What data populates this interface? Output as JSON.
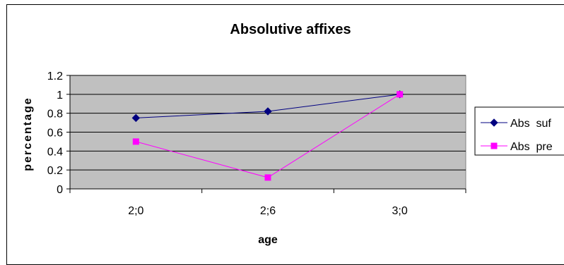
{
  "chart_data": {
    "type": "line",
    "title": "Absolutive affixes",
    "xlabel": "age",
    "ylabel": "percentage",
    "categories": [
      "2;0",
      "2;6",
      "3;0"
    ],
    "ylim": [
      0,
      1.2
    ],
    "yticks": [
      "0",
      "0.2",
      "0.4",
      "0.6",
      "0.8",
      "1",
      "1.2"
    ],
    "grid": true,
    "plot_background": "#c0c0c0",
    "legend_position": "right",
    "series": [
      {
        "name": "Abs  suf",
        "values": [
          0.75,
          0.82,
          1.0
        ],
        "color": "#000080",
        "marker": "diamond"
      },
      {
        "name": "Abs  pre",
        "values": [
          0.5,
          0.12,
          1.0
        ],
        "color": "#ff00ff",
        "marker": "square"
      }
    ]
  }
}
